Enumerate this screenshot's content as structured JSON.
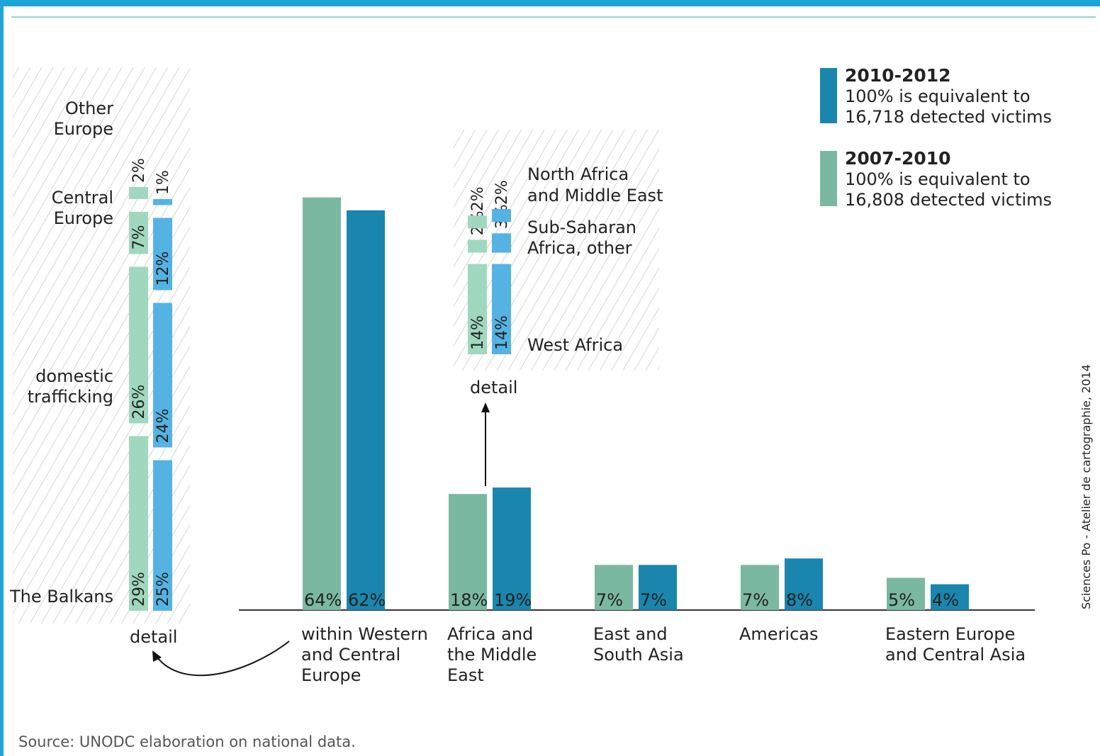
{
  "colors": {
    "p2010": "#1a86ad",
    "p2007": "#7ab8a2",
    "detail2010": "#54b3e3",
    "detail2007": "#9fd8bf",
    "frame": "#1ea6d8"
  },
  "legend": [
    {
      "period": "2010-2012",
      "line1": "100% is equivalent to",
      "line2": "16,718 detected victims",
      "color": "#1a86ad"
    },
    {
      "period": "2007-2010",
      "line1": "100% is equivalent to",
      "line2": "16,808 detected victims",
      "color": "#7ab8a2"
    }
  ],
  "chart_data": [
    {
      "type": "bar",
      "categories": [
        [
          "within Western",
          "and Central",
          "Europe"
        ],
        [
          "Africa and",
          "the Middle",
          "East"
        ],
        [
          "East and",
          "South Asia"
        ],
        [
          "Americas"
        ],
        [
          "Eastern Europe",
          "and Central Asia"
        ]
      ],
      "series": [
        {
          "name": "2007-2010",
          "values": [
            64,
            18,
            7,
            7,
            5
          ],
          "labels": [
            "64%",
            "18%",
            "7%",
            "7%",
            "5%"
          ]
        },
        {
          "name": "2010-2012",
          "values": [
            62,
            19,
            7,
            8,
            4
          ],
          "labels": [
            "62%",
            "19%",
            "7%",
            "8%",
            "4%"
          ]
        }
      ]
    },
    {
      "type": "bar",
      "caption": "detail",
      "categories": [
        [
          "The Balkans"
        ],
        [
          "domestic",
          "trafficking"
        ],
        [
          "Central",
          "Europe"
        ],
        [
          "Other",
          "Europe"
        ]
      ],
      "series": [
        {
          "name": "2007-2010",
          "values": [
            29,
            26,
            7,
            2
          ],
          "labels": [
            "29%",
            "26%",
            "7%",
            "2%"
          ]
        },
        {
          "name": "2010-2012",
          "values": [
            25,
            24,
            12,
            1
          ],
          "labels": [
            "25%",
            "24%",
            "12%",
            "1%"
          ]
        }
      ]
    },
    {
      "type": "bar",
      "caption": "detail",
      "categories": [
        [
          "West Africa"
        ],
        [
          "Sub-Saharan",
          "Africa, other"
        ],
        [
          "North Africa",
          "and Middle East"
        ]
      ],
      "series": [
        {
          "name": "2007-2010",
          "values": [
            14,
            2,
            2
          ],
          "labels": [
            "14%",
            "2%",
            "2%"
          ]
        },
        {
          "name": "2010-2012",
          "values": [
            14,
            3,
            2
          ],
          "labels": [
            "14%",
            "3%",
            "2%"
          ]
        }
      ]
    }
  ],
  "source": "Source: UNODC elaboration on national data.",
  "credit": "Sciences Po - Atelier de cartographie, 2014"
}
